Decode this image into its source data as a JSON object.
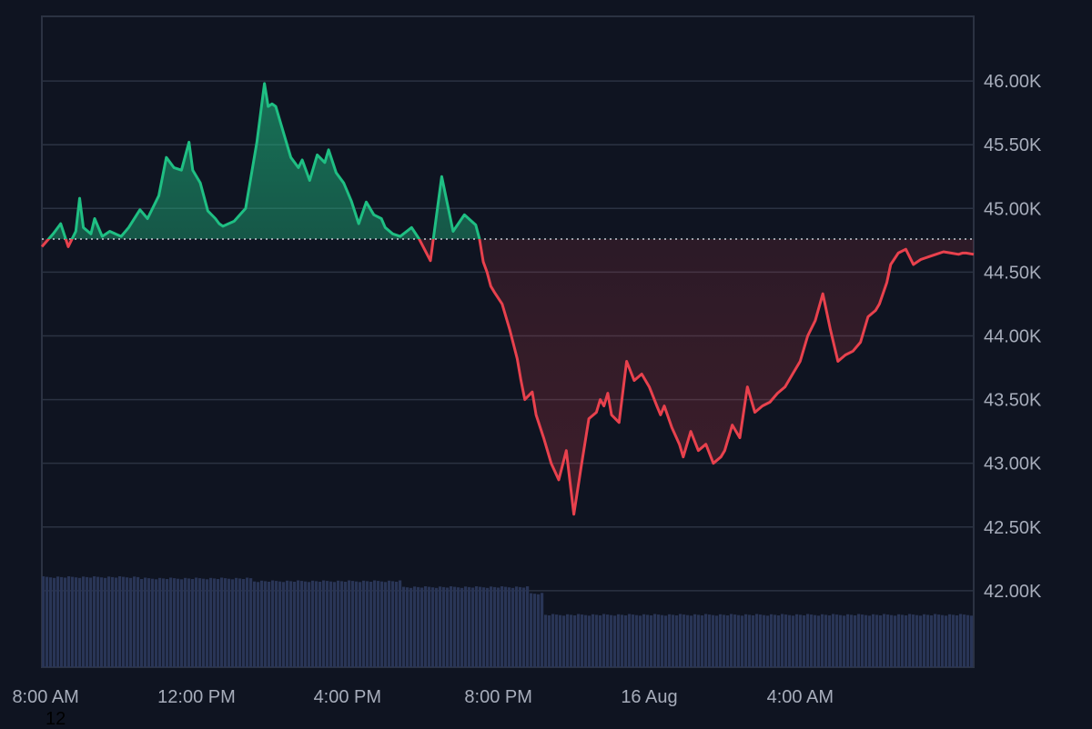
{
  "chart_data": {
    "type": "area",
    "title": "",
    "xlabel": "",
    "ylabel": "",
    "y_tick_labels": [
      "46.00K",
      "45.50K",
      "45.00K",
      "44.50K",
      "44.00K",
      "43.50K",
      "43.00K",
      "42.50K",
      "42.00K"
    ],
    "y_ticks": [
      46000,
      45500,
      45000,
      44500,
      44000,
      43500,
      43000,
      42500,
      42000
    ],
    "ylim": [
      41400,
      46500
    ],
    "x_tick_labels": [
      "8:00 AM",
      "12:00 PM",
      "4:00 PM",
      "8:00 PM",
      "16 Aug",
      "4:00 AM"
    ],
    "x_tick_hours": [
      8,
      12,
      16,
      20,
      24,
      28
    ],
    "xlim_hours": [
      7.9,
      32.6
    ],
    "baseline": 44760,
    "grid": true,
    "colors": {
      "background": "#0f1421",
      "up": "#1fbf83",
      "down": "#e8414d",
      "volume": "#293556",
      "grid": "#2b3242",
      "baseline": "#c8ccd4"
    },
    "series": [
      {
        "x_hours": [
          7.9,
          8.2,
          8.4,
          8.6,
          8.8,
          8.9,
          9.0,
          9.2,
          9.3,
          9.5,
          9.7,
          10.0,
          10.2,
          10.5,
          10.7,
          11.0,
          11.2,
          11.4,
          11.6,
          11.8,
          11.9,
          12.1,
          12.3,
          12.5,
          12.6,
          12.7,
          13.0,
          13.3,
          13.6,
          13.8,
          13.9,
          14.0,
          14.1,
          14.3,
          14.5,
          14.7,
          14.8,
          15.0,
          15.2,
          15.4,
          15.5,
          15.7,
          15.9,
          16.1,
          16.3,
          16.5,
          16.7,
          16.9,
          17.0,
          17.2,
          17.4,
          17.7,
          17.9,
          18.2,
          18.5,
          18.8,
          19.1,
          19.4,
          19.5,
          19.6,
          19.7,
          19.8,
          19.9,
          20.1,
          20.3,
          20.5,
          20.6,
          20.7,
          20.9,
          21.0,
          21.2,
          21.4,
          21.6,
          21.8,
          22.0,
          22.2,
          22.4,
          22.6,
          22.7,
          22.8,
          22.9,
          23.0,
          23.2,
          23.4,
          23.6,
          23.8,
          24.0,
          24.2,
          24.3,
          24.4,
          24.6,
          24.8,
          24.9,
          25.1,
          25.3,
          25.5,
          25.7,
          25.9,
          26.0,
          26.2,
          26.4,
          26.6,
          26.8,
          27.0,
          27.2,
          27.4,
          27.6,
          27.8,
          28.0,
          28.2,
          28.4,
          28.6,
          28.8,
          29.0,
          29.2,
          29.4,
          29.6,
          29.8,
          30.0,
          30.1,
          30.3,
          30.4,
          30.6,
          30.8,
          31.0,
          31.2,
          31.4,
          31.6,
          31.8,
          32.0,
          32.2,
          32.3,
          32.4,
          32.6
        ],
        "values": [
          44700,
          44800,
          44880,
          44700,
          44820,
          45080,
          44850,
          44800,
          44920,
          44780,
          44820,
          44780,
          44850,
          44990,
          44920,
          45100,
          45400,
          45320,
          45300,
          45520,
          45300,
          45200,
          44980,
          44920,
          44880,
          44860,
          44900,
          45000,
          45520,
          45980,
          45800,
          45820,
          45800,
          45600,
          45400,
          45320,
          45380,
          45220,
          45420,
          45360,
          45460,
          45280,
          45200,
          45060,
          44880,
          45050,
          44950,
          44920,
          44850,
          44800,
          44780,
          44850,
          44760,
          44590,
          45250,
          44820,
          44950,
          44870,
          44760,
          44580,
          44500,
          44390,
          44340,
          44250,
          44050,
          43820,
          43650,
          43500,
          43560,
          43380,
          43200,
          43000,
          42870,
          43100,
          42600,
          42980,
          43350,
          43400,
          43500,
          43450,
          43550,
          43380,
          43320,
          43800,
          43650,
          43700,
          43600,
          43450,
          43380,
          43450,
          43280,
          43150,
          43050,
          43250,
          43100,
          43150,
          43000,
          43050,
          43100,
          43300,
          43200,
          43600,
          43400,
          43450,
          43480,
          43550,
          43600,
          43700,
          43800,
          44000,
          44120,
          44330,
          44050,
          43800,
          43850,
          43880,
          43950,
          44150,
          44200,
          44250,
          44420,
          44560,
          44650,
          44680,
          44560,
          44600,
          44620,
          44640,
          44660,
          44650,
          44640,
          44650,
          44650,
          44640
        ]
      }
    ],
    "volume": [
      {
        "from_hours": 7.9,
        "to_hours": 10.5,
        "level": 1.0
      },
      {
        "from_hours": 10.5,
        "to_hours": 13.5,
        "level": 0.985
      },
      {
        "from_hours": 13.5,
        "to_hours": 17.5,
        "level": 0.955
      },
      {
        "from_hours": 17.5,
        "to_hours": 20.8,
        "level": 0.89
      },
      {
        "from_hours": 20.8,
        "to_hours": 21.2,
        "level": 0.82
      },
      {
        "from_hours": 21.2,
        "to_hours": 32.6,
        "level": 0.585
      }
    ]
  },
  "corner_label": "12"
}
